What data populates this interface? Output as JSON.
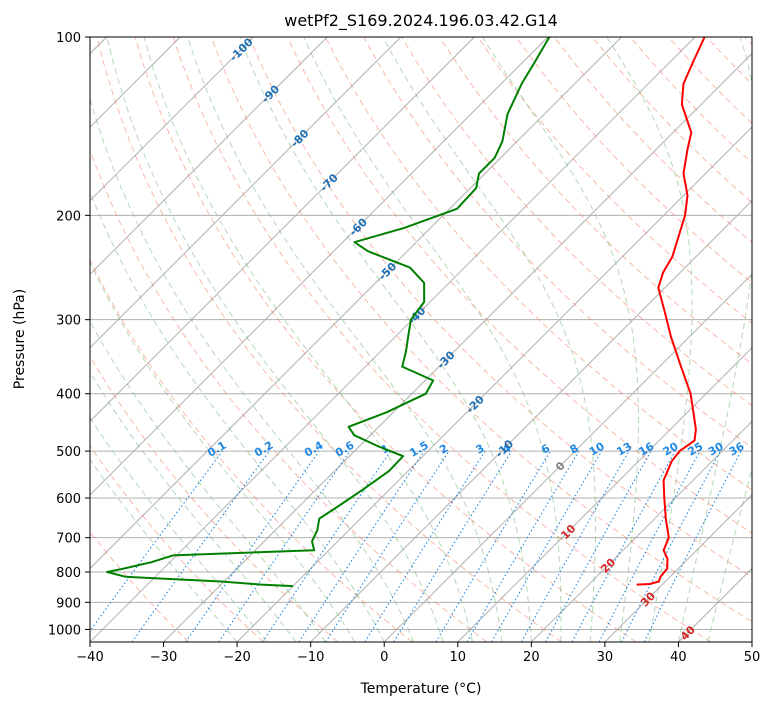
{
  "chart_data": {
    "type": "line",
    "title": "wetPf2_S169.2024.196.03.42.G14",
    "xlabel": "Temperature (°C)",
    "ylabel": "Pressure (hPa)",
    "xlim": [
      -40,
      50
    ],
    "ylim": [
      1050,
      100
    ],
    "y_scale": "log",
    "x_ticks": [
      "−40",
      "−30",
      "−20",
      "−10",
      "0",
      "10",
      "20",
      "30",
      "40",
      "50"
    ],
    "y_ticks": [
      "100",
      "200",
      "300",
      "400",
      "500",
      "600",
      "700",
      "800",
      "900",
      "1000"
    ],
    "grid": true,
    "colors": {
      "temperature": "#ff0000",
      "dewpoint": "#008000",
      "isotherm": "#555555",
      "dry_adiabat": "#f08060",
      "moist_adiabat": "#6ab46a",
      "mixing_ratio": "#1e88e5",
      "isotherm_label": "#1f6fb4",
      "mixing_label": "#1e88e5",
      "warm_label": "#d62728",
      "zero_label": "#808080"
    },
    "isotherm_labels": [
      "-100",
      "-90",
      "-80",
      "-70",
      "-60",
      "-50",
      "-40",
      "-30",
      "-20",
      "-10",
      "0",
      "10",
      "20",
      "30",
      "40"
    ],
    "mixing_ratio_labels": [
      "0.1",
      "0.2",
      "0.4",
      "0.6",
      "1",
      "1.5",
      "2",
      "3",
      "4",
      "6",
      "8",
      "10",
      "13",
      "16",
      "20",
      "25",
      "30",
      "36"
    ],
    "series": [
      {
        "key": "temperature",
        "p": [
          840,
          838,
          830,
          815,
          790,
          760,
          735,
          700,
          650,
          600,
          560,
          520,
          500,
          480,
          460,
          430,
          400,
          360,
          320,
          290,
          265,
          250,
          235,
          220,
          200,
          185,
          170,
          155,
          145,
          130,
          120,
          110,
          100
        ],
        "x": [
          26.5,
          28.2,
          29.1,
          28.7,
          28.5,
          27.2,
          25.5,
          24.5,
          21.5,
          18.5,
          16.0,
          14.5,
          14.2,
          14.8,
          13.5,
          10.8,
          7.9,
          2.9,
          -2.6,
          -6.9,
          -10.9,
          -12.3,
          -13.2,
          -14.8,
          -17.1,
          -19.5,
          -23.0,
          -25.7,
          -27.5,
          -32.6,
          -35.2,
          -36.9,
          -38.7
        ]
      },
      {
        "key": "dewpoint",
        "p": [
          845,
          840,
          830,
          815,
          800,
          790,
          770,
          750,
          735,
          710,
          680,
          650,
          620,
          580,
          540,
          510,
          490,
          470,
          455,
          430,
          400,
          380,
          360,
          340,
          320,
          300,
          280,
          260,
          245,
          230,
          222,
          210,
          195,
          180,
          170,
          160,
          150,
          135,
          120,
          110,
          100
        ],
        "x": [
          -20.0,
          -24.5,
          -30.4,
          -44.0,
          -47.2,
          -45.5,
          -42.5,
          -40.5,
          -22.0,
          -23.5,
          -24.3,
          -25.6,
          -24.7,
          -23.6,
          -22.6,
          -22.7,
          -27.6,
          -32.2,
          -34.1,
          -30.9,
          -28.1,
          -28.9,
          -35.0,
          -36.5,
          -38.3,
          -40.2,
          -40.8,
          -43.4,
          -47.4,
          -55.3,
          -58.4,
          -53.6,
          -49.0,
          -49.2,
          -50.8,
          -50.8,
          -52.0,
          -55.0,
          -57.2,
          -58.4,
          -59.8
        ]
      }
    ]
  }
}
